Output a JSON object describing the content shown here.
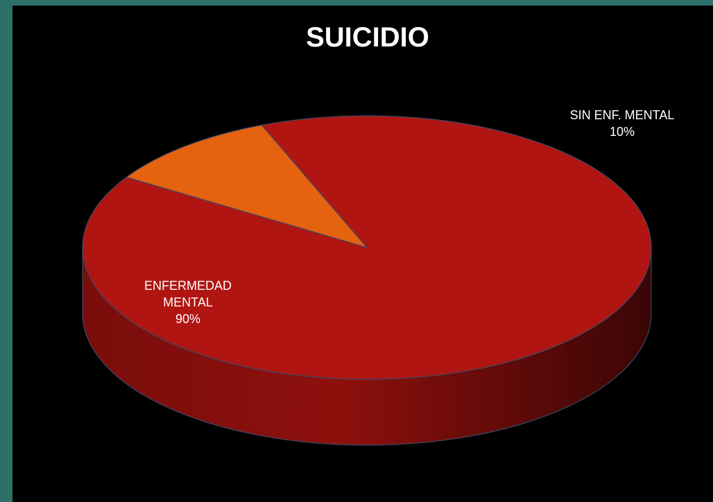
{
  "chart_data": {
    "type": "pie",
    "title": "SUICIDIO",
    "slices": [
      {
        "label_lines": [
          "ENFERMEDAD",
          "MENTAL"
        ],
        "value": 90,
        "display": "90%",
        "color": "#b01512",
        "side_color": "#6e0c0a"
      },
      {
        "label_lines": [
          "SIN ENF. MENTAL"
        ],
        "value": 10,
        "display": "10%",
        "color": "#e5620f",
        "side_color": "#8a3a08"
      }
    ],
    "legend": "none"
  }
}
